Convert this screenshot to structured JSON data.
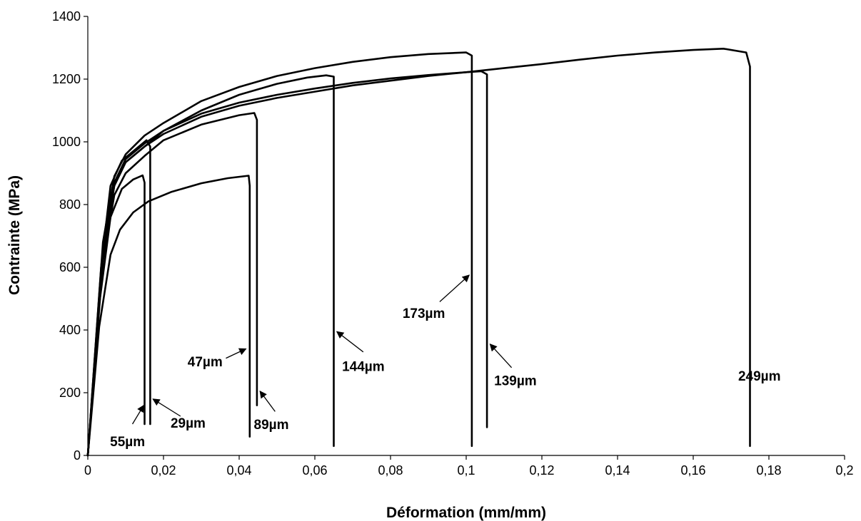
{
  "chart_data": {
    "type": "line",
    "title": "",
    "xlabel": "Déformation (mm/mm)",
    "ylabel": "Contrainte (MPa)",
    "xlim": [
      0,
      0.2
    ],
    "ylim": [
      0,
      1400
    ],
    "grid": false,
    "legend": "none",
    "x_ticks": [
      {
        "value": 0,
        "label": "0"
      },
      {
        "value": 0.02,
        "label": "0,02"
      },
      {
        "value": 0.04,
        "label": "0,04"
      },
      {
        "value": 0.06,
        "label": "0,06"
      },
      {
        "value": 0.08,
        "label": "0,08"
      },
      {
        "value": 0.1,
        "label": "0,1"
      },
      {
        "value": 0.12,
        "label": "0,12"
      },
      {
        "value": 0.14,
        "label": "0,14"
      },
      {
        "value": 0.16,
        "label": "0,16"
      },
      {
        "value": 0.18,
        "label": "0,18"
      },
      {
        "value": 0.2,
        "label": "0,2"
      }
    ],
    "y_ticks": [
      {
        "value": 0,
        "label": "0"
      },
      {
        "value": 200,
        "label": "200"
      },
      {
        "value": 400,
        "label": "400"
      },
      {
        "value": 600,
        "label": "600"
      },
      {
        "value": 800,
        "label": "800"
      },
      {
        "value": 1000,
        "label": "1000"
      },
      {
        "value": 1200,
        "label": "1200"
      },
      {
        "value": 1400,
        "label": "1400"
      }
    ],
    "series": [
      {
        "key": "s55",
        "points": [
          [
            0,
            0
          ],
          [
            0.003,
            480
          ],
          [
            0.006,
            760
          ],
          [
            0.009,
            850
          ],
          [
            0.012,
            880
          ],
          [
            0.0145,
            893
          ],
          [
            0.015,
            870
          ],
          [
            0.015,
            100
          ]
        ]
      },
      {
        "key": "s29",
        "points": [
          [
            0,
            0
          ],
          [
            0.0035,
            600
          ],
          [
            0.006,
            860
          ],
          [
            0.009,
            940
          ],
          [
            0.012,
            970
          ],
          [
            0.0155,
            1005
          ],
          [
            0.0165,
            985
          ],
          [
            0.0165,
            100
          ]
        ]
      },
      {
        "key": "s47",
        "points": [
          [
            0,
            0
          ],
          [
            0.003,
            410
          ],
          [
            0.006,
            640
          ],
          [
            0.0085,
            720
          ],
          [
            0.012,
            775
          ],
          [
            0.016,
            810
          ],
          [
            0.022,
            840
          ],
          [
            0.03,
            868
          ],
          [
            0.037,
            884
          ],
          [
            0.0425,
            892
          ],
          [
            0.0428,
            860
          ],
          [
            0.0428,
            60
          ]
        ]
      },
      {
        "key": "s89",
        "points": [
          [
            0,
            0
          ],
          [
            0.004,
            620
          ],
          [
            0.007,
            830
          ],
          [
            0.01,
            900
          ],
          [
            0.015,
            955
          ],
          [
            0.02,
            1005
          ],
          [
            0.03,
            1055
          ],
          [
            0.04,
            1085
          ],
          [
            0.044,
            1092
          ],
          [
            0.0447,
            1070
          ],
          [
            0.0447,
            160
          ]
        ]
      },
      {
        "key": "s144",
        "points": [
          [
            0,
            0
          ],
          [
            0.004,
            640
          ],
          [
            0.007,
            860
          ],
          [
            0.01,
            935
          ],
          [
            0.015,
            985
          ],
          [
            0.02,
            1035
          ],
          [
            0.03,
            1100
          ],
          [
            0.04,
            1150
          ],
          [
            0.05,
            1185
          ],
          [
            0.058,
            1205
          ],
          [
            0.063,
            1212
          ],
          [
            0.065,
            1208
          ],
          [
            0.065,
            30
          ]
        ]
      },
      {
        "key": "s173",
        "points": [
          [
            0,
            0
          ],
          [
            0.004,
            680
          ],
          [
            0.007,
            890
          ],
          [
            0.01,
            960
          ],
          [
            0.015,
            1020
          ],
          [
            0.02,
            1060
          ],
          [
            0.03,
            1130
          ],
          [
            0.04,
            1175
          ],
          [
            0.05,
            1210
          ],
          [
            0.06,
            1235
          ],
          [
            0.07,
            1255
          ],
          [
            0.08,
            1270
          ],
          [
            0.09,
            1280
          ],
          [
            0.1,
            1285
          ],
          [
            0.1015,
            1275
          ],
          [
            0.1015,
            30
          ]
        ]
      },
      {
        "key": "s139",
        "points": [
          [
            0,
            0
          ],
          [
            0.004,
            660
          ],
          [
            0.007,
            870
          ],
          [
            0.01,
            945
          ],
          [
            0.015,
            995
          ],
          [
            0.02,
            1035
          ],
          [
            0.03,
            1090
          ],
          [
            0.04,
            1125
          ],
          [
            0.05,
            1150
          ],
          [
            0.06,
            1170
          ],
          [
            0.07,
            1188
          ],
          [
            0.08,
            1202
          ],
          [
            0.09,
            1213
          ],
          [
            0.1,
            1222
          ],
          [
            0.104,
            1225
          ],
          [
            0.1055,
            1215
          ],
          [
            0.1055,
            90
          ]
        ]
      },
      {
        "key": "s249",
        "points": [
          [
            0,
            0
          ],
          [
            0.004,
            640
          ],
          [
            0.007,
            860
          ],
          [
            0.01,
            935
          ],
          [
            0.015,
            985
          ],
          [
            0.02,
            1025
          ],
          [
            0.03,
            1080
          ],
          [
            0.04,
            1115
          ],
          [
            0.05,
            1140
          ],
          [
            0.06,
            1160
          ],
          [
            0.07,
            1180
          ],
          [
            0.08,
            1195
          ],
          [
            0.09,
            1210
          ],
          [
            0.1,
            1222
          ],
          [
            0.11,
            1235
          ],
          [
            0.12,
            1248
          ],
          [
            0.13,
            1262
          ],
          [
            0.14,
            1275
          ],
          [
            0.15,
            1285
          ],
          [
            0.16,
            1293
          ],
          [
            0.168,
            1297
          ],
          [
            0.174,
            1285
          ],
          [
            0.175,
            1240
          ],
          [
            0.175,
            30
          ]
        ]
      }
    ],
    "annotations": [
      {
        "label": "55µm",
        "text_x": 0.0105,
        "text_y": 45,
        "arrow_from": [
          0.0118,
          100
        ],
        "arrow_to": [
          0.0148,
          160
        ]
      },
      {
        "label": "29µm",
        "text_x": 0.0265,
        "text_y": 105,
        "arrow_from": [
          0.0245,
          125
        ],
        "arrow_to": [
          0.0172,
          180
        ]
      },
      {
        "label": "47µm",
        "text_x": 0.031,
        "text_y": 300,
        "arrow_from": [
          0.0365,
          310
        ],
        "arrow_to": [
          0.0418,
          340
        ]
      },
      {
        "label": "89µm",
        "text_x": 0.0485,
        "text_y": 100,
        "arrow_from": [
          0.0495,
          140
        ],
        "arrow_to": [
          0.0455,
          205
        ]
      },
      {
        "label": "144µm",
        "text_x": 0.0728,
        "text_y": 285,
        "arrow_from": [
          0.0728,
          330
        ],
        "arrow_to": [
          0.0658,
          395
        ]
      },
      {
        "label": "173µm",
        "text_x": 0.0888,
        "text_y": 455,
        "arrow_from": [
          0.093,
          490
        ],
        "arrow_to": [
          0.1008,
          575
        ]
      },
      {
        "label": "139µm",
        "text_x": 0.113,
        "text_y": 240,
        "arrow_from": [
          0.112,
          280
        ],
        "arrow_to": [
          0.1063,
          355
        ]
      },
      {
        "label": "249µm",
        "text_x": 0.1775,
        "text_y": 255
      }
    ]
  }
}
